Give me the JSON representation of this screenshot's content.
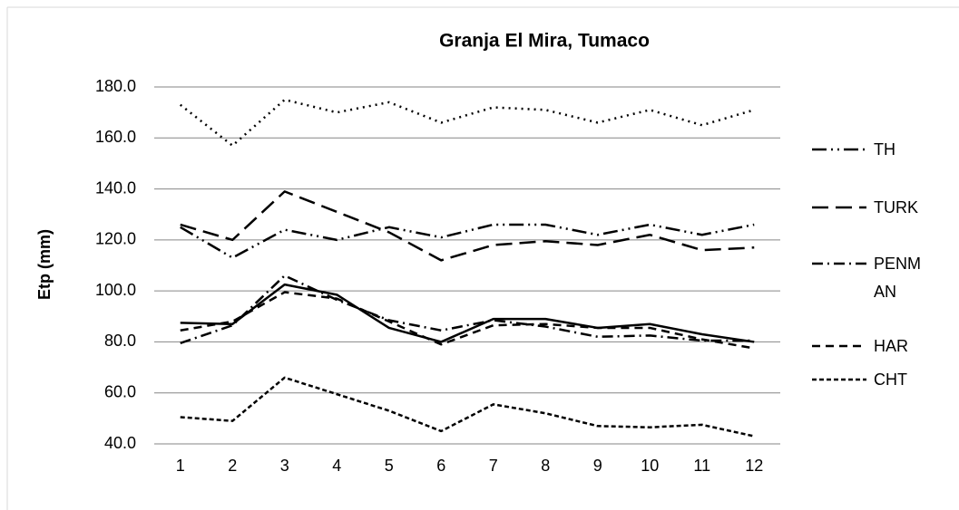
{
  "chart_data": {
    "type": "line",
    "title": "Granja El Mira, Tumaco",
    "y_label": "Etp (mm)",
    "categories": [
      "1",
      "2",
      "3",
      "4",
      "5",
      "6",
      "7",
      "8",
      "9",
      "10",
      "11",
      "12"
    ],
    "ylim": [
      40,
      180
    ],
    "yticks": [
      {
        "value": 40,
        "label": "40.0"
      },
      {
        "value": 60,
        "label": "60.0"
      },
      {
        "value": 80,
        "label": "80.0"
      },
      {
        "value": 100,
        "label": "100.0"
      },
      {
        "value": 120,
        "label": "120.0"
      },
      {
        "value": 140,
        "label": "140.0"
      },
      {
        "value": 160,
        "label": "160.0"
      },
      {
        "value": 180,
        "label": "180.0"
      }
    ],
    "grid": true,
    "legend": "right",
    "series": [
      {
        "color": "#000000",
        "dash": "dotted",
        "values": [
          173,
          157,
          175,
          170,
          174,
          166,
          172,
          171,
          166,
          171,
          165,
          171
        ]
      },
      {
        "name": "TH",
        "color": "#000000",
        "dash": "long-dash-dot-dot",
        "values": [
          125,
          113,
          124,
          120,
          125,
          121,
          126,
          126,
          122,
          126,
          122,
          126
        ]
      },
      {
        "name": "TURK",
        "color": "#000000",
        "dash": "long-dash",
        "values": [
          126,
          120,
          139,
          131,
          123,
          112,
          118,
          119.5,
          118,
          122,
          116,
          117
        ]
      },
      {
        "color": "#000000",
        "dash": "solid",
        "values": [
          87.5,
          87,
          102.5,
          98.5,
          85.5,
          80,
          89,
          89,
          85.5,
          87,
          83,
          80
        ]
      },
      {
        "name": "PENMAN",
        "color": "#000000",
        "dash": "dash-dot",
        "values": [
          79.5,
          86.5,
          106,
          96.5,
          88.5,
          84.5,
          88.5,
          86,
          82,
          82.5,
          80.5,
          80.5
        ]
      },
      {
        "name": "HAR",
        "color": "#000000",
        "dash": "dash",
        "values": [
          84.5,
          88,
          99.5,
          97,
          88,
          79,
          86.5,
          87,
          85.5,
          85.5,
          81,
          77.5
        ]
      },
      {
        "name": "CHT",
        "color": "#000000",
        "dash": "short-dash",
        "values": [
          50.5,
          49,
          66,
          59.5,
          53,
          45,
          55.5,
          52,
          47,
          46.5,
          47.5,
          43
        ]
      }
    ]
  }
}
